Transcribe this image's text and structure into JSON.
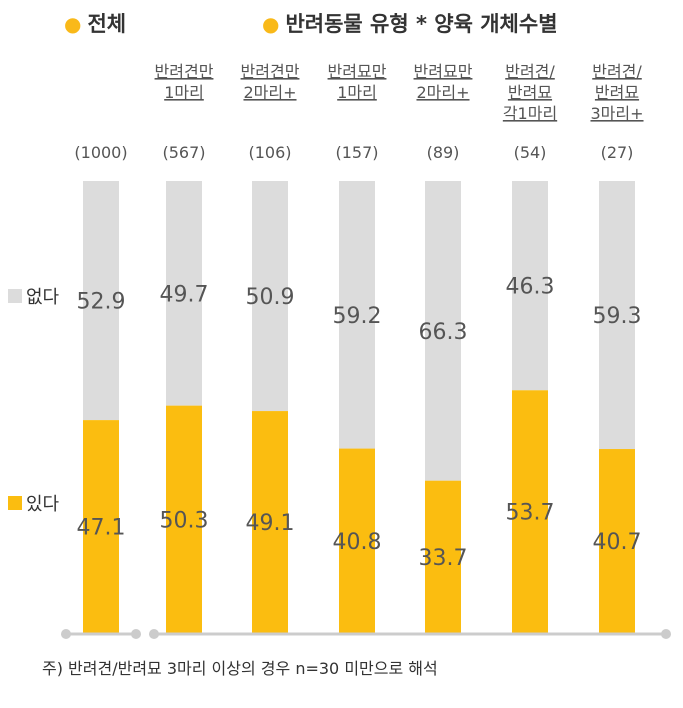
{
  "header": {
    "overall_label": "전체",
    "group_label": "반려동물 유형 * 양육 개체수별"
  },
  "legend": {
    "none_label": "없다",
    "yes_label": "있다"
  },
  "footnote": "주) 반려견/반려묘 3마리 이상의 경우 n=30 미만으로 해석",
  "colors": {
    "yes": "#fbbd10",
    "none": "#dcdcdc",
    "axis": "#cccccc",
    "label": "#555555"
  },
  "chart_data": {
    "type": "bar",
    "stacked": true,
    "ylim": [
      0,
      100
    ],
    "categories": [
      {
        "lines": [
          ""
        ],
        "n": "(1000)"
      },
      {
        "lines": [
          "반려견만",
          "1마리"
        ],
        "n": "(567)"
      },
      {
        "lines": [
          "반려견만",
          "2마리+"
        ],
        "n": "(106)"
      },
      {
        "lines": [
          "반려묘만",
          "1마리"
        ],
        "n": "(157)"
      },
      {
        "lines": [
          "반려묘만",
          "2마리+"
        ],
        "n": "(89)"
      },
      {
        "lines": [
          "반려견/",
          "반려묘",
          "각1마리"
        ],
        "n": "(54)"
      },
      {
        "lines": [
          "반려견/",
          "반려묘",
          "3마리+"
        ],
        "n": "(27)"
      }
    ],
    "series": [
      {
        "name": "있다",
        "values": [
          47.1,
          50.3,
          49.1,
          40.8,
          33.7,
          53.7,
          40.7
        ]
      },
      {
        "name": "없다",
        "values": [
          52.9,
          49.7,
          50.9,
          59.2,
          66.3,
          46.3,
          59.3
        ]
      }
    ]
  }
}
